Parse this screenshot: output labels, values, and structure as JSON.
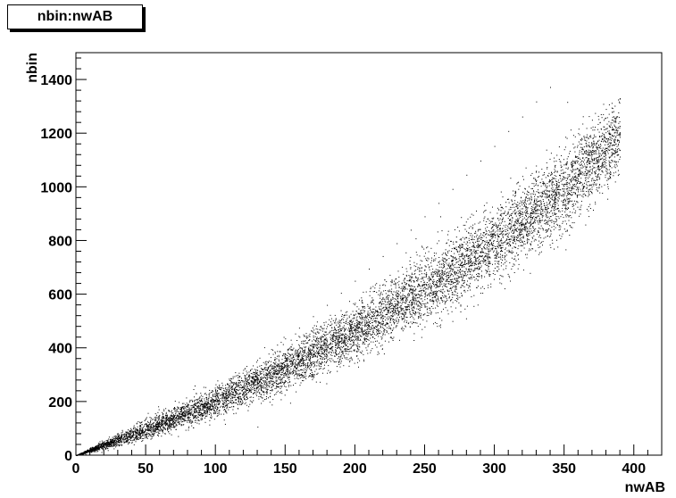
{
  "title": "nbin:nwAB",
  "chart_data": {
    "type": "scatter",
    "title": "nbin:nwAB",
    "xlabel": "nwAB",
    "ylabel": "nbin",
    "xlim": [
      0,
      420
    ],
    "ylim": [
      0,
      1500
    ],
    "xticks": [
      0,
      50,
      100,
      150,
      200,
      250,
      300,
      350,
      400
    ],
    "yticks": [
      0,
      200,
      400,
      600,
      800,
      1000,
      1200,
      1400
    ],
    "grid": false,
    "legend": "none",
    "point_color": "#000000",
    "series": [
      {
        "points_sampled": [
          [
            5,
            5
          ],
          [
            10,
            12
          ],
          [
            15,
            20
          ],
          [
            20,
            30
          ],
          [
            25,
            40
          ],
          [
            30,
            50
          ],
          [
            35,
            60
          ],
          [
            40,
            72
          ],
          [
            45,
            84
          ],
          [
            50,
            95
          ],
          [
            55,
            108
          ],
          [
            60,
            122
          ],
          [
            65,
            136
          ],
          [
            70,
            150
          ],
          [
            75,
            165
          ],
          [
            80,
            180
          ],
          [
            85,
            196
          ],
          [
            90,
            212
          ],
          [
            95,
            228
          ],
          [
            100,
            245
          ],
          [
            110,
            280
          ],
          [
            120,
            318
          ],
          [
            130,
            355
          ],
          [
            140,
            395
          ],
          [
            150,
            435
          ],
          [
            160,
            475
          ],
          [
            170,
            518
          ],
          [
            180,
            560
          ],
          [
            190,
            605
          ],
          [
            200,
            650
          ],
          [
            210,
            695
          ],
          [
            220,
            742
          ],
          [
            230,
            790
          ],
          [
            240,
            840
          ],
          [
            250,
            890
          ],
          [
            260,
            940
          ],
          [
            270,
            992
          ],
          [
            280,
            1045
          ],
          [
            290,
            1098
          ],
          [
            300,
            1152
          ],
          [
            310,
            1208
          ],
          [
            320,
            1262
          ],
          [
            330,
            1318
          ],
          [
            340,
            1372
          ],
          [
            350,
            1140
          ],
          [
            360,
            1200
          ],
          [
            370,
            1250
          ],
          [
            380,
            1290
          ],
          [
            390,
            1330
          ]
        ],
        "trend": {
          "x": [
            0,
            50,
            100,
            150,
            200,
            250,
            300,
            350,
            390
          ],
          "center": [
            0,
            95,
            200,
            320,
            460,
            620,
            790,
            990,
            1190
          ],
          "spread_low": [
            0,
            55,
            135,
            235,
            345,
            470,
            630,
            800,
            1040
          ],
          "spread_high": [
            0,
            150,
            275,
            430,
            590,
            770,
            960,
            1170,
            1370
          ]
        }
      }
    ]
  }
}
